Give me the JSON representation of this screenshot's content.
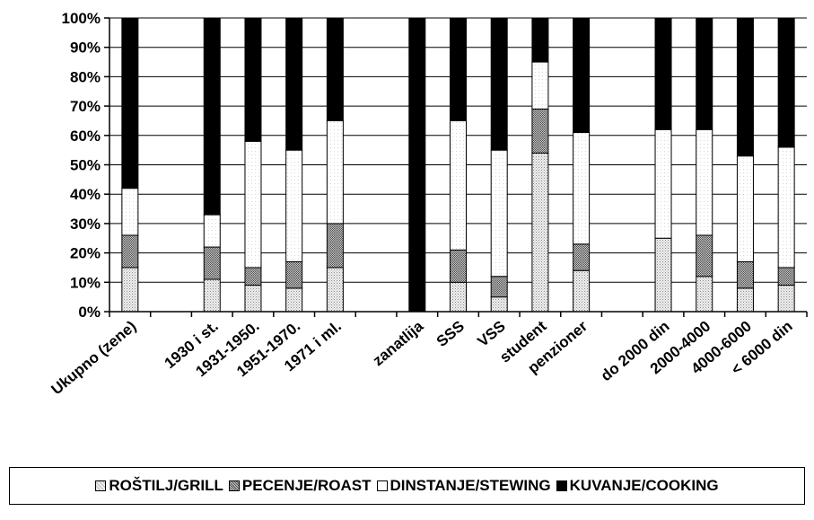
{
  "chart_data": {
    "type": "bar",
    "stacked": true,
    "y_axis": {
      "ticks": [
        "0%",
        "10%",
        "20%",
        "30%",
        "40%",
        "50%",
        "60%",
        "70%",
        "80%",
        "90%",
        "100%"
      ],
      "ylim": [
        0,
        100
      ]
    },
    "categories": [
      "Ukupno (zene)",
      "",
      "1930 i st.",
      "1931-1950.",
      "1951-1970.",
      "1971 i ml.",
      "",
      "zanatlija",
      "SSS",
      "VSS",
      "student",
      "penzioner",
      "",
      "do 2000 din",
      "2000-4000",
      "4000-6000",
      "< 6000 din"
    ],
    "series": [
      {
        "name": "ROŠTILJ/GRILL",
        "color": "#d9d9d9",
        "values": [
          15,
          null,
          11,
          9,
          8,
          15,
          null,
          0,
          10,
          5,
          54,
          14,
          null,
          25,
          12,
          8,
          9
        ]
      },
      {
        "name": "PECENJE/ROAST",
        "color": "#9c9c9c",
        "values": [
          11,
          null,
          11,
          6,
          9,
          15,
          null,
          0,
          11,
          7,
          15,
          9,
          null,
          0,
          14,
          9,
          6
        ]
      },
      {
        "name": "DINSTANJE/STEWING",
        "color": "#ffffff",
        "values": [
          16,
          null,
          11,
          43,
          38,
          35,
          null,
          0,
          44,
          43,
          16,
          38,
          null,
          37,
          36,
          36,
          41
        ]
      },
      {
        "name": "KUVANJE/COOKING",
        "color": "#000000",
        "values": [
          58,
          null,
          67,
          42,
          45,
          35,
          null,
          100,
          35,
          45,
          15,
          39,
          null,
          38,
          38,
          47,
          44
        ]
      }
    ],
    "grid": true,
    "legend_position": "bottom"
  },
  "legend": {
    "items": [
      {
        "label": "ROŠTILJ/GRILL",
        "icon": "light-gray-square"
      },
      {
        "label": "PECENJE/ROAST",
        "icon": "gray-square"
      },
      {
        "label": "DINSTANJE/STEWING",
        "icon": "white-square"
      },
      {
        "label": "KUVANJE/COOKING",
        "icon": "black-square"
      }
    ]
  }
}
